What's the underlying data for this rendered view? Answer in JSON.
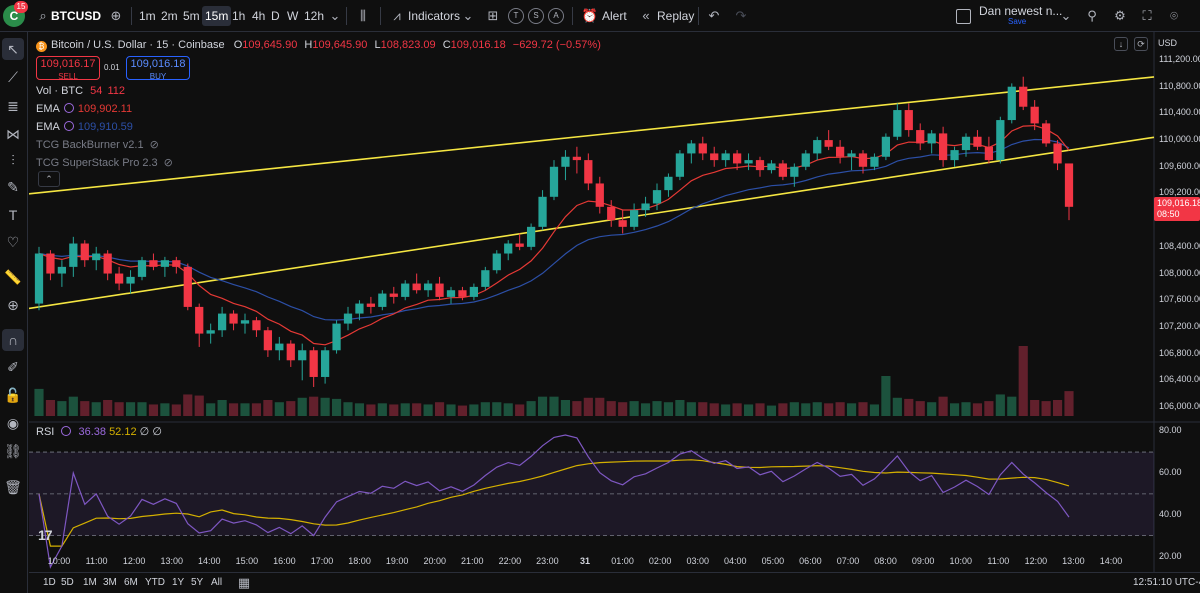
{
  "toolbar": {
    "badge_count": "15",
    "symbol": "BTCUSD",
    "timeframes": [
      "1m",
      "2m",
      "5m",
      "15m",
      "1h",
      "4h",
      "D",
      "W",
      "12h"
    ],
    "active_timeframe": "15m",
    "indicators_label": "Indicators",
    "alert_label": "Alert",
    "replay_label": "Replay",
    "layout_name": "Dan newest n...",
    "layout_save": "Save",
    "mini_buttons": [
      "T",
      "S",
      "A"
    ]
  },
  "legend": {
    "title": "Bitcoin / U.S. Dollar · 15 · Coinbase",
    "open_key": "O",
    "open": "109,645.90",
    "high_key": "H",
    "high": "109,645.90",
    "low_key": "L",
    "low": "108,823.09",
    "close_key": "C",
    "close": "109,016.18",
    "change": "−629.72 (−0.57%)",
    "sell_price": "109,016.17",
    "sell_label": "SELL",
    "spread": "0.01",
    "buy_price": "109,016.18",
    "buy_label": "BUY",
    "volume_label": "Vol · BTC",
    "volume_a": "54",
    "volume_b": "112",
    "ema1_label": "EMA",
    "ema1_value": "109,902.11",
    "ema2_label": "EMA",
    "ema2_value": "109,910.59",
    "ind1": "TCG BackBurner v2.1",
    "ind2": "TCG SuperStack Pro 2.3"
  },
  "rsi_legend": {
    "label": "RSI",
    "v1": "36.38",
    "v2": "52.12",
    "v3": "∅",
    "v4": "∅"
  },
  "price_axis": {
    "currency": "USD",
    "ticks": [
      "111,200.00",
      "110,800.00",
      "110,400.00",
      "110,000.00",
      "109,600.00",
      "109,200.00",
      "108,400.00",
      "108,000.00",
      "107,600.00",
      "107,200.00",
      "106,800.00",
      "106,400.00",
      "106,000.00"
    ],
    "current_price": "109,016.18",
    "countdown": "08:50",
    "rsi_ticks": [
      "80.00",
      "60.00",
      "40.00",
      "20.00"
    ]
  },
  "time_axis": [
    "10:00",
    "11:00",
    "12:00",
    "13:00",
    "14:00",
    "15:00",
    "16:00",
    "17:00",
    "18:00",
    "19:00",
    "20:00",
    "21:00",
    "22:00",
    "23:00",
    "31",
    "01:00",
    "02:00",
    "03:00",
    "04:00",
    "05:00",
    "06:00",
    "07:00",
    "08:00",
    "09:00",
    "10:00",
    "11:00",
    "12:00",
    "13:00",
    "14:00"
  ],
  "bottom": {
    "ranges": [
      "1D",
      "5D",
      "1M",
      "3M",
      "6M",
      "YTD",
      "1Y",
      "5Y",
      "All"
    ],
    "clock": "12:51:10 UTC-4"
  },
  "colors": {
    "up": "#26a69a",
    "down": "#f23645",
    "channel": "#f5e642",
    "ema_fast": "#e53935",
    "ema_slow": "#2c4fa6",
    "rsi": "#7e57c2",
    "rsi_ma": "#d4b000"
  },
  "chart_data": {
    "type": "candlestick",
    "symbol": "BTCUSD",
    "interval": "15",
    "y_range": [
      105850,
      111500
    ],
    "rsi_range": [
      15,
      82
    ],
    "candles_ohlc": [
      [
        107550,
        108400,
        107450,
        108300
      ],
      [
        108300,
        108350,
        107900,
        108000
      ],
      [
        108000,
        108200,
        107800,
        108100
      ],
      [
        108100,
        108550,
        107950,
        108450
      ],
      [
        108450,
        108500,
        108100,
        108200
      ],
      [
        108200,
        108400,
        108050,
        108300
      ],
      [
        108300,
        108350,
        107900,
        108000
      ],
      [
        108000,
        108100,
        107750,
        107850
      ],
      [
        107850,
        108050,
        107700,
        107950
      ],
      [
        107950,
        108250,
        107900,
        108200
      ],
      [
        108200,
        108300,
        108050,
        108100
      ],
      [
        108100,
        108250,
        107950,
        108200
      ],
      [
        108200,
        108250,
        108000,
        108100
      ],
      [
        108100,
        108150,
        107450,
        107500
      ],
      [
        107500,
        107550,
        106900,
        107100
      ],
      [
        107100,
        107250,
        106950,
        107150
      ],
      [
        107150,
        107500,
        107050,
        107400
      ],
      [
        107400,
        107450,
        107150,
        107250
      ],
      [
        107250,
        107400,
        107100,
        107300
      ],
      [
        107300,
        107350,
        107050,
        107150
      ],
      [
        107150,
        107200,
        106750,
        106850
      ],
      [
        106850,
        107050,
        106700,
        106950
      ],
      [
        106950,
        107000,
        106600,
        106700
      ],
      [
        106700,
        106950,
        106400,
        106850
      ],
      [
        106850,
        106900,
        106300,
        106450
      ],
      [
        106450,
        106900,
        106350,
        106850
      ],
      [
        106850,
        107300,
        106800,
        107250
      ],
      [
        107250,
        107500,
        107150,
        107400
      ],
      [
        107400,
        107600,
        107300,
        107550
      ],
      [
        107550,
        107650,
        107400,
        107500
      ],
      [
        107500,
        107750,
        107450,
        107700
      ],
      [
        107700,
        107800,
        107550,
        107650
      ],
      [
        107650,
        107900,
        107600,
        107850
      ],
      [
        107850,
        108000,
        107700,
        107750
      ],
      [
        107750,
        107900,
        107650,
        107850
      ],
      [
        107850,
        107950,
        107600,
        107650
      ],
      [
        107650,
        107800,
        107550,
        107750
      ],
      [
        107750,
        107800,
        107600,
        107650
      ],
      [
        107650,
        107850,
        107600,
        107800
      ],
      [
        107800,
        108100,
        107750,
        108050
      ],
      [
        108050,
        108350,
        108000,
        108300
      ],
      [
        108300,
        108500,
        108200,
        108450
      ],
      [
        108450,
        108600,
        108350,
        108400
      ],
      [
        108400,
        108750,
        108350,
        108700
      ],
      [
        108700,
        109250,
        108650,
        109150
      ],
      [
        109150,
        109700,
        109100,
        109600
      ],
      [
        109600,
        109850,
        109400,
        109750
      ],
      [
        109750,
        109900,
        109500,
        109700
      ],
      [
        109700,
        109800,
        109250,
        109350
      ],
      [
        109350,
        109450,
        108900,
        109000
      ],
      [
        109000,
        109100,
        108700,
        108800
      ],
      [
        108800,
        108950,
        108600,
        108700
      ],
      [
        108700,
        109050,
        108650,
        108950
      ],
      [
        108950,
        109150,
        108850,
        109050
      ],
      [
        109050,
        109350,
        108950,
        109250
      ],
      [
        109250,
        109500,
        109150,
        109450
      ],
      [
        109450,
        109850,
        109400,
        109800
      ],
      [
        109800,
        110000,
        109650,
        109950
      ],
      [
        109950,
        110050,
        109700,
        109800
      ],
      [
        109800,
        109900,
        109600,
        109700
      ],
      [
        109700,
        109850,
        109600,
        109800
      ],
      [
        109800,
        109850,
        109550,
        109650
      ],
      [
        109650,
        109800,
        109550,
        109700
      ],
      [
        109700,
        109750,
        109450,
        109550
      ],
      [
        109550,
        109700,
        109500,
        109650
      ],
      [
        109650,
        109700,
        109400,
        109450
      ],
      [
        109450,
        109650,
        109300,
        109600
      ],
      [
        109600,
        109850,
        109550,
        109800
      ],
      [
        109800,
        110050,
        109700,
        110000
      ],
      [
        110000,
        110150,
        109850,
        109900
      ],
      [
        109900,
        110000,
        109650,
        109750
      ],
      [
        109750,
        109850,
        109550,
        109800
      ],
      [
        109800,
        109850,
        109500,
        109600
      ],
      [
        109600,
        109800,
        109550,
        109750
      ],
      [
        109750,
        110100,
        109700,
        110050
      ],
      [
        110050,
        110550,
        110000,
        110450
      ],
      [
        110450,
        110550,
        110050,
        110150
      ],
      [
        110150,
        110250,
        109850,
        109950
      ],
      [
        109950,
        110150,
        109800,
        110100
      ],
      [
        110100,
        110200,
        109600,
        109700
      ],
      [
        109700,
        109900,
        109600,
        109850
      ],
      [
        109850,
        110100,
        109750,
        110050
      ],
      [
        110050,
        110150,
        109850,
        109900
      ],
      [
        109900,
        110050,
        109650,
        109700
      ],
      [
        109700,
        110350,
        109650,
        110300
      ],
      [
        110300,
        110850,
        110250,
        110800
      ],
      [
        110800,
        110950,
        110450,
        110500
      ],
      [
        110500,
        110600,
        110150,
        110250
      ],
      [
        110250,
        110300,
        109900,
        109950
      ],
      [
        109950,
        110000,
        109550,
        109650
      ],
      [
        109650,
        109650,
        108800,
        109000
      ]
    ],
    "rsi_last": 36.38,
    "rsi_ma_last": 52.12,
    "rsi_levels": [
      70,
      50,
      30
    ],
    "channel_upper": [
      [
        0,
        109210
      ],
      [
        92,
        110850
      ]
    ],
    "channel_lower": [
      [
        0,
        107500
      ],
      [
        92,
        109900
      ]
    ]
  }
}
